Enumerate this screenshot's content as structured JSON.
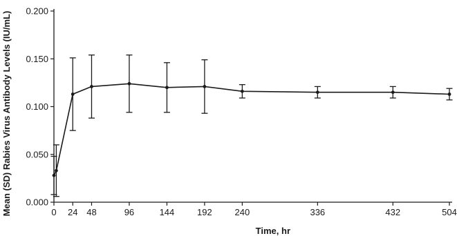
{
  "chart_data": {
    "type": "line",
    "xlabel": "Time, hr",
    "ylabel": "Mean (SD) Rabies Virus Antibody Levels (IU/mL)",
    "xlim": [
      0,
      504
    ],
    "ylim": [
      0,
      0.2
    ],
    "x_ticks": [
      0,
      24,
      48,
      96,
      144,
      192,
      240,
      336,
      432,
      504
    ],
    "y_ticks": [
      0.0,
      0.05,
      0.1,
      0.15,
      0.2
    ],
    "y_tick_labels": [
      "0.000",
      "0.050",
      "0.100",
      "0.150",
      "0.200"
    ],
    "grid": false,
    "series": [
      {
        "x": [
          0,
          3,
          24,
          48,
          96,
          144,
          192,
          240,
          336,
          432,
          504
        ],
        "y": [
          0.028,
          0.033,
          0.113,
          0.121,
          0.124,
          0.12,
          0.121,
          0.116,
          0.115,
          0.115,
          0.113
        ],
        "sd": [
          0.02,
          0.027,
          0.038,
          0.033,
          0.03,
          0.026,
          0.028,
          0.007,
          0.006,
          0.006,
          0.006
        ],
        "color": "#1a1a1a"
      }
    ]
  }
}
